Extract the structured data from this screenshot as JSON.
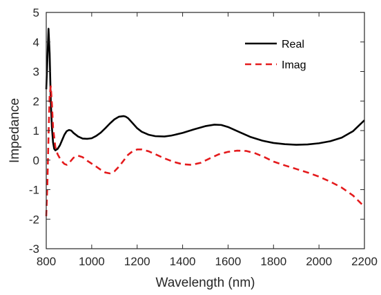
{
  "chart_data": {
    "type": "line",
    "xlabel": "Wavelength (nm)",
    "ylabel": "Impedance",
    "xlim": [
      800,
      2200
    ],
    "ylim": [
      -3,
      5
    ],
    "xticks": [
      800,
      1000,
      1200,
      1400,
      1600,
      1800,
      2000,
      2200
    ],
    "yticks": [
      -3,
      -2,
      -1,
      0,
      1,
      2,
      3,
      4,
      5
    ],
    "grid": false,
    "legend_position": "top-right",
    "series": [
      {
        "name": "Real",
        "color": "#000000",
        "style": "solid",
        "x": [
          800,
          805,
          810,
          815,
          820,
          825,
          830,
          835,
          840,
          850,
          860,
          870,
          880,
          890,
          900,
          910,
          920,
          940,
          960,
          980,
          1000,
          1020,
          1040,
          1060,
          1080,
          1100,
          1120,
          1140,
          1150,
          1160,
          1180,
          1200,
          1220,
          1250,
          1280,
          1320,
          1350,
          1400,
          1450,
          1500,
          1540,
          1570,
          1600,
          1650,
          1700,
          1750,
          1800,
          1850,
          1900,
          1950,
          2000,
          2050,
          2100,
          2150,
          2200
        ],
        "y": [
          2.4,
          3.4,
          4.45,
          3.6,
          2.0,
          1.1,
          0.6,
          0.38,
          0.33,
          0.38,
          0.5,
          0.68,
          0.86,
          0.98,
          1.02,
          1.0,
          0.92,
          0.8,
          0.73,
          0.72,
          0.74,
          0.82,
          0.93,
          1.08,
          1.24,
          1.38,
          1.47,
          1.49,
          1.47,
          1.42,
          1.25,
          1.08,
          0.96,
          0.86,
          0.81,
          0.8,
          0.83,
          0.92,
          1.04,
          1.15,
          1.2,
          1.19,
          1.12,
          0.95,
          0.78,
          0.66,
          0.58,
          0.54,
          0.52,
          0.53,
          0.57,
          0.64,
          0.76,
          0.98,
          1.35
        ]
      },
      {
        "name": "Imag",
        "color": "#e41a1c",
        "style": "dashed",
        "x": [
          800,
          805,
          810,
          815,
          820,
          825,
          830,
          840,
          850,
          860,
          870,
          880,
          890,
          900,
          920,
          940,
          960,
          980,
          1000,
          1020,
          1040,
          1060,
          1080,
          1100,
          1120,
          1140,
          1160,
          1180,
          1200,
          1220,
          1250,
          1280,
          1320,
          1360,
          1400,
          1440,
          1480,
          1520,
          1560,
          1600,
          1640,
          1680,
          1720,
          1760,
          1800,
          1850,
          1900,
          1950,
          2000,
          2050,
          2100,
          2150,
          2200
        ],
        "y": [
          -1.9,
          -0.8,
          0.8,
          2.2,
          2.5,
          1.9,
          1.1,
          0.45,
          0.2,
          0.06,
          -0.05,
          -0.13,
          -0.16,
          -0.1,
          0.08,
          0.15,
          0.1,
          -0.02,
          -0.12,
          -0.22,
          -0.33,
          -0.42,
          -0.45,
          -0.38,
          -0.22,
          -0.02,
          0.18,
          0.3,
          0.36,
          0.36,
          0.3,
          0.2,
          0.06,
          -0.06,
          -0.14,
          -0.16,
          -0.09,
          0.06,
          0.2,
          0.28,
          0.32,
          0.31,
          0.23,
          0.1,
          -0.05,
          -0.18,
          -0.3,
          -0.42,
          -0.56,
          -0.73,
          -0.93,
          -1.2,
          -1.58
        ]
      }
    ]
  }
}
